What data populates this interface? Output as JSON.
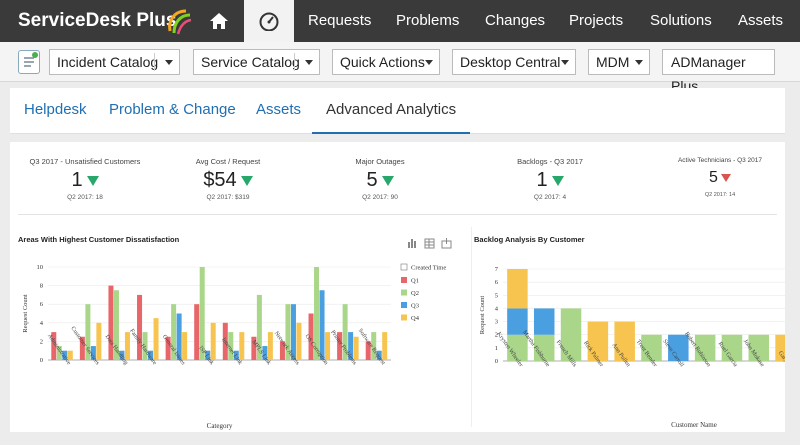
{
  "app": {
    "name": "ServiceDesk Plus"
  },
  "nav": [
    "Requests",
    "Problems",
    "Changes",
    "Projects",
    "Solutions",
    "Assets"
  ],
  "toolbar": [
    "Incident Catalog",
    "Service Catalog",
    "Quick Actions",
    "Desktop Central",
    "MDM",
    "ADManager Plus"
  ],
  "tabs": [
    "Helpdesk",
    "Problem & Change",
    "Assets",
    "Advanced Analytics"
  ],
  "kpis": [
    {
      "label": "Q3 2017 - Unsatisfied Customers",
      "value": "1",
      "trend": "down-green",
      "sub": "Q2 2017: 18"
    },
    {
      "label": "Avg Cost / Request",
      "value": "$54",
      "trend": "down-green",
      "sub": "Q2 2017: $319"
    },
    {
      "label": "Major Outages",
      "value": "5",
      "trend": "down-green",
      "sub": "Q2 2017: 90"
    },
    {
      "label": "Backlogs - Q3 2017",
      "value": "1",
      "trend": "down-green",
      "sub": "Q2 2017: 4"
    },
    {
      "label": "Active Technicians - Q3 2017",
      "value": "5",
      "trend": "down-red",
      "sub": "Q2 2017: 14"
    }
  ],
  "chart_data": [
    {
      "type": "bar",
      "title": "Areas With Highest Customer Dissatisfaction",
      "xlabel": "Category",
      "ylabel": "Request Count",
      "ylim": [
        0,
        10
      ],
      "yticks": [
        0,
        2,
        4,
        6,
        8,
        10
      ],
      "legend_title": "Created Time",
      "categories": [
        "Administrative",
        "Customer Services",
        "Data Handling",
        "Family Hardware",
        "General Issues",
        "ISP Link",
        "Internet Link",
        "MPLS Link",
        "Network Access",
        "OS Corruption",
        "Printer Problems",
        "Software Request"
      ],
      "series": [
        {
          "name": "Q1",
          "color": "#e8656a",
          "values": [
            3,
            2.5,
            8,
            7,
            2.5,
            6,
            4,
            2.5,
            2,
            5,
            3,
            2
          ]
        },
        {
          "name": "Q2",
          "color": "#a9d689",
          "values": [
            1.5,
            6,
            7.5,
            3,
            6,
            10,
            3,
            7,
            6,
            10,
            6,
            3
          ]
        },
        {
          "name": "Q3",
          "color": "#4a9fe0",
          "values": [
            1,
            1.5,
            1,
            1,
            5,
            1,
            1,
            1.5,
            6,
            7.5,
            3,
            1
          ]
        },
        {
          "name": "Q4",
          "color": "#f7c44f",
          "values": [
            1,
            4,
            3,
            4.5,
            3,
            4,
            3,
            3,
            4,
            3,
            2.5,
            3
          ]
        }
      ]
    },
    {
      "type": "bar",
      "stacked": true,
      "title": "Backlog Analysis By Customer",
      "xlabel": "Customer Name",
      "ylabel": "Request Count",
      "ylim": [
        0,
        7
      ],
      "yticks": [
        0,
        1,
        2,
        3,
        4,
        5,
        6,
        7
      ],
      "categories": [
        "Krysten Wheeler",
        "Martha Fishburne",
        "French Mills",
        "Rick Palmer",
        "Ann Pullen",
        "Trent Bender",
        "Steve Carroll",
        "Robert Robinson",
        "Ruel Garcia",
        "John Mokase",
        "Gary B"
      ],
      "series": [
        {
          "color": "#a9d689",
          "values": [
            2,
            2,
            4,
            0,
            0,
            2,
            0,
            2,
            2,
            2,
            0
          ]
        },
        {
          "color": "#4a9fe0",
          "values": [
            2,
            2,
            0,
            0,
            0,
            0,
            2,
            0,
            0,
            0,
            0
          ]
        },
        {
          "color": "#f7c44f",
          "values": [
            3,
            0,
            0,
            3,
            3,
            0,
            0,
            0,
            0,
            0,
            2
          ]
        }
      ]
    }
  ]
}
